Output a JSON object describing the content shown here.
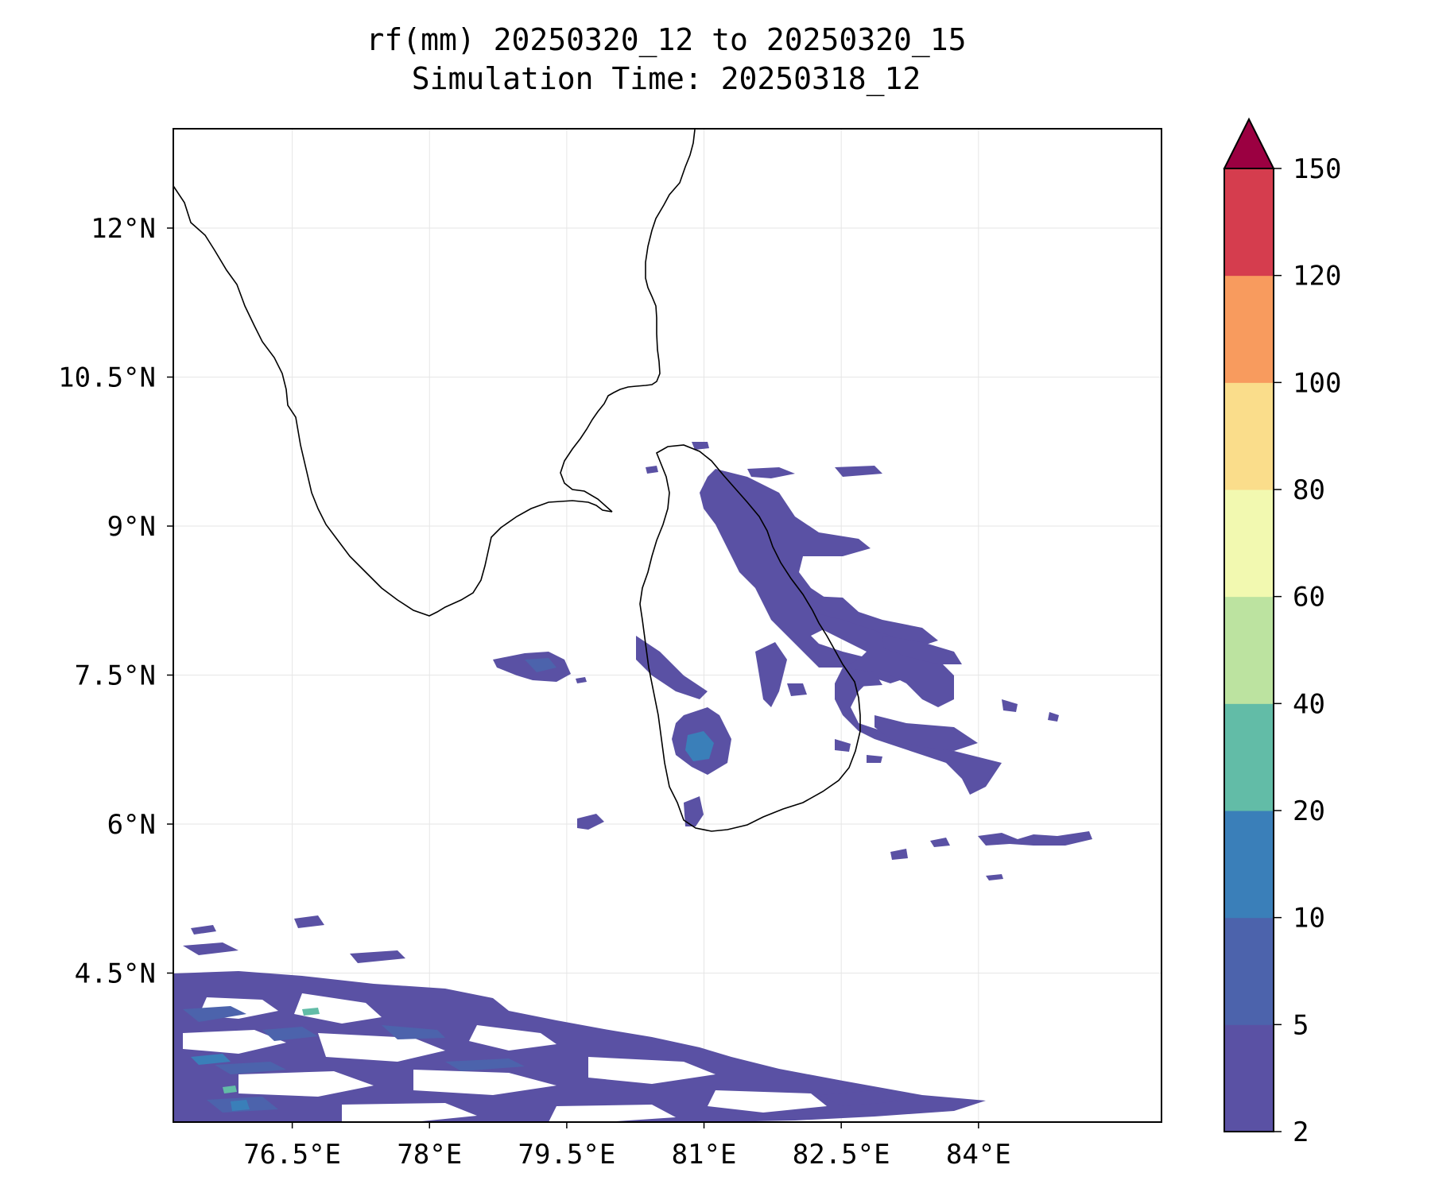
{
  "title": {
    "line1": "rf(mm) 20250320_12 to 20250320_15",
    "line2": "Simulation Time: 20250318_12"
  },
  "map": {
    "lon_range": [
      75.2,
      86.0
    ],
    "lat_range": [
      3.0,
      13.0
    ],
    "x_ticks": [
      {
        "value": 76.5,
        "label": "76.5°E"
      },
      {
        "value": 78.0,
        "label": "78°E"
      },
      {
        "value": 79.5,
        "label": "79.5°E"
      },
      {
        "value": 81.0,
        "label": "81°E"
      },
      {
        "value": 82.5,
        "label": "82.5°E"
      },
      {
        "value": 84.0,
        "label": "84°E"
      }
    ],
    "y_ticks": [
      {
        "value": 4.5,
        "label": "4.5°N"
      },
      {
        "value": 6.0,
        "label": "6°N"
      },
      {
        "value": 7.5,
        "label": "7.5°N"
      },
      {
        "value": 9.0,
        "label": "9°N"
      },
      {
        "value": 10.5,
        "label": "10.5°N"
      },
      {
        "value": 12.0,
        "label": "12°N"
      }
    ],
    "gridlines": true,
    "coastline_color": "#000000"
  },
  "colorbar": {
    "levels": [
      2,
      5,
      10,
      20,
      40,
      60,
      80,
      100,
      120,
      150
    ],
    "labels": [
      "2",
      "5",
      "10",
      "20",
      "40",
      "60",
      "80",
      "100",
      "120",
      "150"
    ],
    "colors": [
      "#5a51a4",
      "#4c63ac",
      "#3a7fb9",
      "#62bca7",
      "#bce3a0",
      "#f2f9b0",
      "#fadd8b",
      "#f89b5e",
      "#d53d4e"
    ],
    "extend_color": "#9b0041",
    "extend": "max"
  },
  "chart_data": {
    "type": "contour-map",
    "variable": "rf(mm)",
    "period": "20250320_12 to 20250320_15",
    "simulation_time": "20250318_12",
    "rain_areas": [
      {
        "region": "northeast coast of Sri Lanka and offshore",
        "lon_range": [
          80.6,
          82.6
        ],
        "lat_range": [
          8.0,
          9.7
        ],
        "max_category_mm": "5-10"
      },
      {
        "region": "east coast offshore band",
        "lon_range": [
          81.3,
          84.0
        ],
        "lat_range": [
          6.2,
          8.1
        ],
        "max_category_mm": "5-10"
      },
      {
        "region": "central Sri Lanka highlands",
        "lon_range": [
          80.2,
          80.6
        ],
        "lat_range": [
          6.6,
          7.0
        ],
        "max_category_mm": "10-20"
      },
      {
        "region": "west of Sri Lanka (Gulf of Mannar)",
        "lon_range": [
          77.9,
          78.7
        ],
        "lat_range": [
          7.6,
          7.8
        ],
        "max_category_mm": "5-10"
      },
      {
        "region": "southeast offshore",
        "lon_range": [
          83.3,
          84.4
        ],
        "lat_range": [
          5.6,
          5.9
        ],
        "max_category_mm": "2-5"
      },
      {
        "region": "southern Indian Ocean band",
        "lon_range": [
          75.2,
          83.4
        ],
        "lat_range": [
          3.0,
          5.0
        ],
        "max_category_mm": "20-40"
      }
    ]
  }
}
